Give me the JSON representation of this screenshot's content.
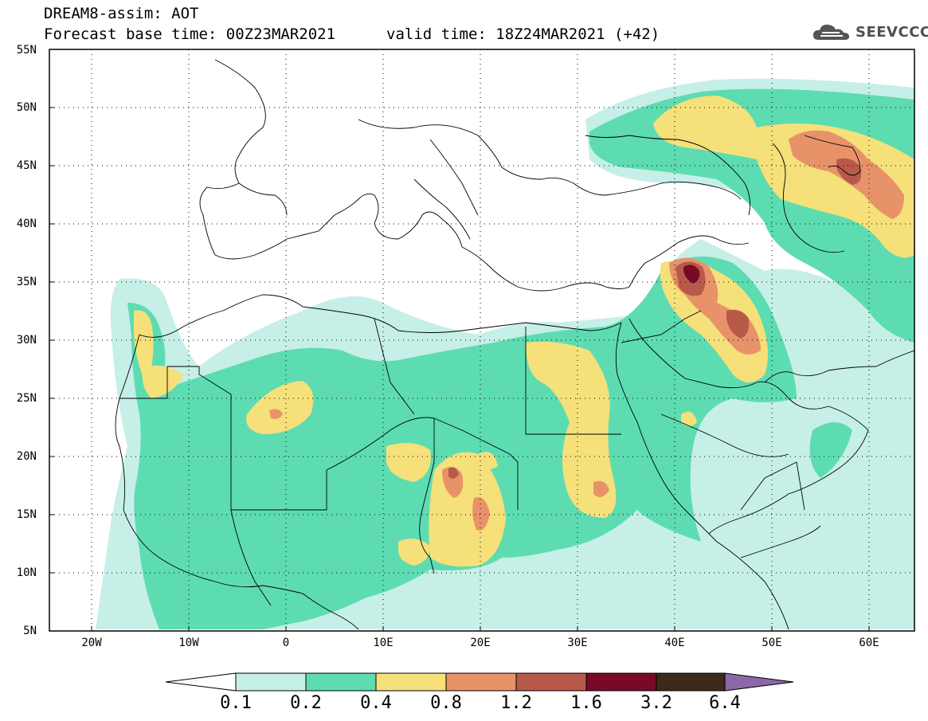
{
  "header": {
    "title": "DREAM8-assim: AOT",
    "base_time": "Forecast base time: 00Z23MAR2021",
    "valid_time": "valid time: 18Z24MAR2021 (+42)"
  },
  "logo": {
    "text": "SEEVCCC",
    "icon": "cloud-icon"
  },
  "axes": {
    "lat_labels": [
      "55N",
      "50N",
      "45N",
      "40N",
      "35N",
      "30N",
      "25N",
      "20N",
      "15N",
      "10N",
      "5N"
    ],
    "lon_labels": [
      "20W",
      "10W",
      "0",
      "10E",
      "20E",
      "30E",
      "40E",
      "50E",
      "60E"
    ]
  },
  "colorbar": {
    "labels": [
      "0.1",
      "0.2",
      "0.4",
      "0.8",
      "1.2",
      "1.6",
      "3.2",
      "6.4"
    ],
    "colors": [
      "#ffffff",
      "#c6efe7",
      "#5ddcb2",
      "#f5e07a",
      "#e8926a",
      "#b85a4a",
      "#780a28",
      "#3d2a1a",
      "#8c68a8"
    ]
  }
}
